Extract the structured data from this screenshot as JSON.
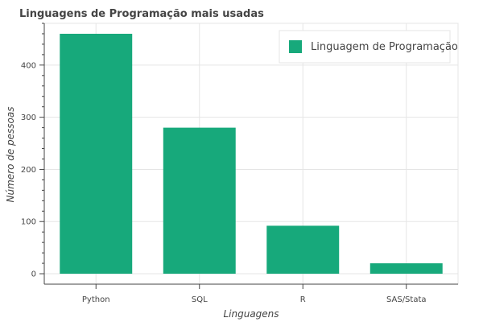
{
  "chart_data": {
    "type": "bar",
    "title": "Linguagens de Programação mais usadas",
    "xlabel": "Linguagens",
    "ylabel": "Número de pessoas",
    "categories": [
      "Python",
      "SQL",
      "R",
      "SAS/Stata"
    ],
    "series": [
      {
        "name": "Linguagem de Programação",
        "values": [
          460,
          280,
          92,
          20
        ]
      }
    ],
    "ylim": [
      -20,
      480
    ],
    "yticks": [
      0,
      100,
      200,
      300,
      400
    ],
    "grid": true,
    "legend": "top-right",
    "colors": {
      "bar": "#17a97b"
    }
  }
}
